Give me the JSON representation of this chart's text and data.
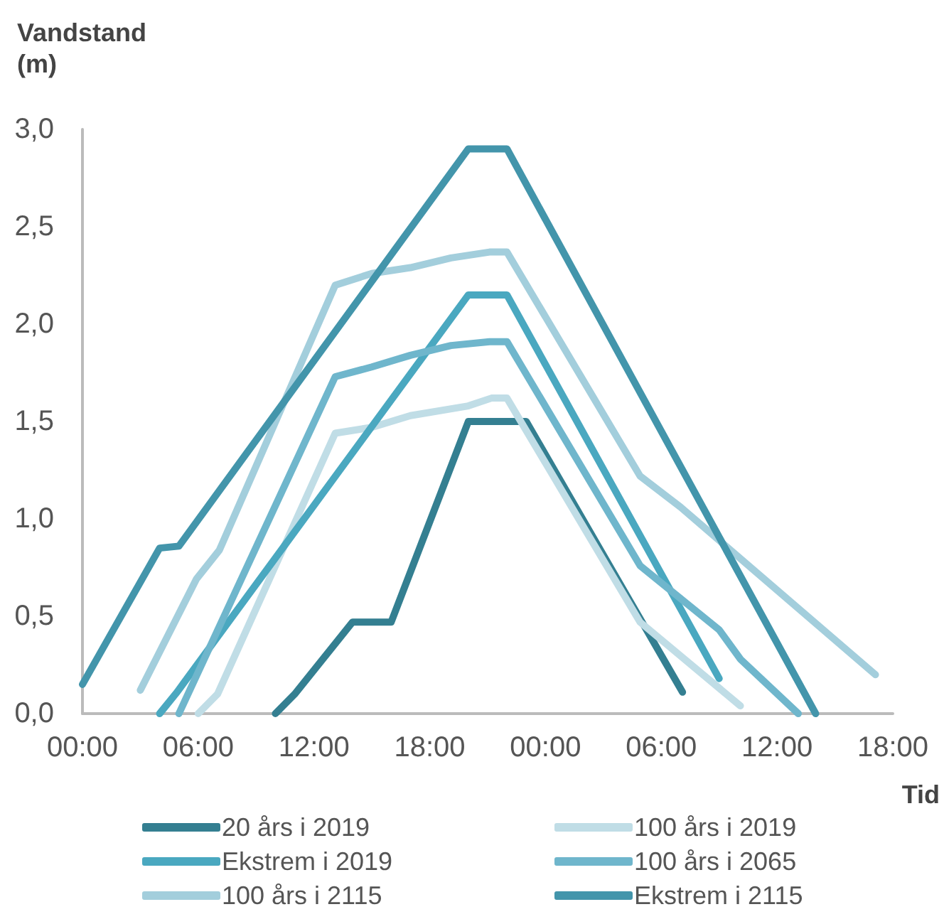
{
  "chart_data": {
    "type": "line",
    "ylabel": "Vandstand\n(m)",
    "xlabel": "Tid",
    "xlim": [
      "--01-01T00:00",
      "--01-02T18:00"
    ],
    "xticks": [
      {
        "value": "--01-01T00:00",
        "label": "00:00"
      },
      {
        "value": "--01-01T06:00",
        "label": "06:00"
      },
      {
        "value": "--01-01T12:00",
        "label": "12:00"
      },
      {
        "value": "--01-01T18:00",
        "label": "18:00"
      },
      {
        "value": "--01-02T00:00",
        "label": "00:00"
      },
      {
        "value": "--01-02T06:00",
        "label": "06:00"
      },
      {
        "value": "--01-02T12:00",
        "label": "12:00"
      },
      {
        "value": "--01-02T18:00",
        "label": "18:00"
      }
    ],
    "ylim": [
      0,
      3
    ],
    "yticks": [
      {
        "value": 0,
        "label": "0,0"
      },
      {
        "value": 0.5,
        "label": "0,5"
      },
      {
        "value": 1,
        "label": "1,0"
      },
      {
        "value": 1.5,
        "label": "1,5"
      },
      {
        "value": 2,
        "label": "2,0"
      },
      {
        "value": 2.5,
        "label": "2,5"
      },
      {
        "value": 3,
        "label": "3,0"
      }
    ],
    "grid": false,
    "legend": "bottom",
    "marker": "none",
    "line_style": "solid",
    "series": [
      {
        "name": "20 års i 2019",
        "color": "#347f91",
        "x": [
          "--01-01T10:00",
          "--01-01T11:00",
          "--01-01T14:00",
          "--01-01T16:00",
          "--01-01T20:00",
          "--01-01T23:00",
          "--01-02T07:06"
        ],
        "values": [
          0,
          0.1,
          0.47,
          0.47,
          1.5,
          1.5,
          0.11
        ]
      },
      {
        "name": "100 års i 2019",
        "color": "#c0dde6",
        "x": [
          "--01-01T06:00",
          "--01-01T07:00",
          "--01-01T13:06",
          "--01-01T15:00",
          "--01-01T17:00",
          "--01-01T20:00",
          "--01-01T21:12",
          "--01-01T22:00",
          "--01-02T04:54",
          "--01-02T10:06"
        ],
        "values": [
          0,
          0.1,
          1.44,
          1.47,
          1.53,
          1.58,
          1.62,
          1.62,
          0.47,
          0.04
        ]
      },
      {
        "name": "Ekstrem i 2019",
        "color": "#4aa8c0",
        "x": [
          "--01-01T04:00",
          "--01-01T04:54",
          "--01-01T20:00",
          "--01-01T22:00",
          "--01-02T09:00"
        ],
        "values": [
          0,
          0.11,
          2.15,
          2.15,
          0.18
        ]
      },
      {
        "name": "100 års i 2065",
        "color": "#6fb6cc",
        "x": [
          "--01-01T05:00",
          "--01-01T13:06",
          "--01-01T15:00",
          "--01-01T17:00",
          "--01-01T19:06",
          "--01-01T21:06",
          "--01-01T22:00",
          "--01-02T04:54",
          "--01-02T09:00",
          "--01-02T10:06",
          "--01-02T13:06"
        ],
        "values": [
          0,
          1.73,
          1.78,
          1.84,
          1.89,
          1.91,
          1.91,
          0.76,
          0.43,
          0.28,
          0
        ]
      },
      {
        "name": "100 års i 2115",
        "color": "#a3cedc",
        "x": [
          "--01-01T03:00",
          "--01-01T05:54",
          "--01-01T07:06",
          "--01-01T13:06",
          "--01-01T15:00",
          "--01-01T17:00",
          "--01-01T19:06",
          "--01-01T21:06",
          "--01-01T22:00",
          "--01-02T04:54",
          "--01-02T07:00",
          "--01-02T17:06"
        ],
        "values": [
          0.12,
          0.69,
          0.84,
          2.2,
          2.26,
          2.29,
          2.34,
          2.37,
          2.37,
          1.22,
          1.06,
          0.2
        ]
      },
      {
        "name": "Ekstrem i 2115",
        "color": "#4395ab",
        "x": [
          "--01-01T00:00",
          "--01-01T04:00",
          "--01-01T05:00",
          "--01-01T20:00",
          "--01-01T22:00",
          "--01-02T14:00"
        ],
        "values": [
          0.15,
          0.85,
          0.86,
          2.9,
          2.9,
          0
        ]
      }
    ]
  }
}
